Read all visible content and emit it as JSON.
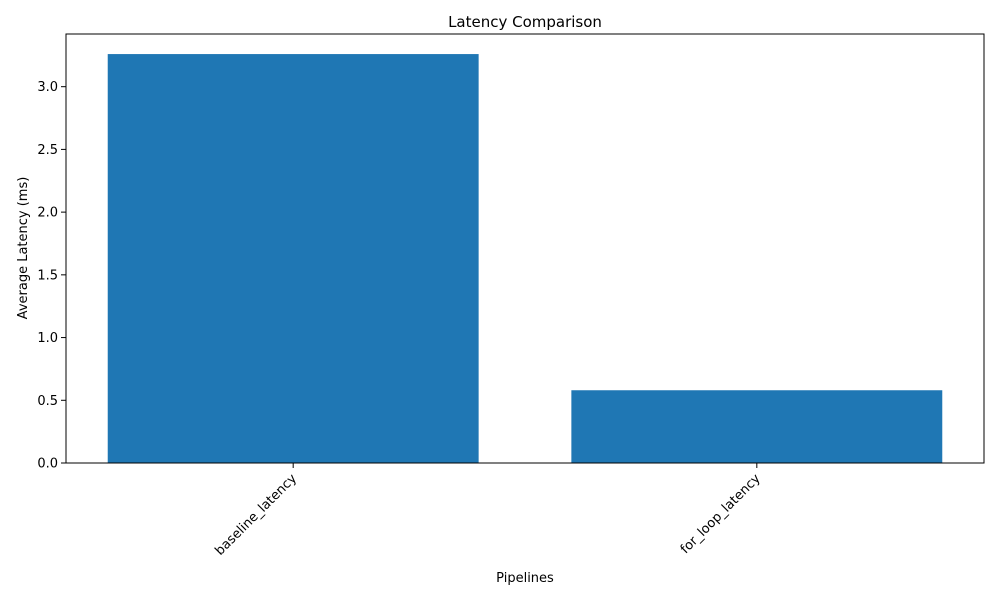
{
  "chart_data": {
    "type": "bar",
    "title": "Latency Comparison",
    "xlabel": "Pipelines",
    "ylabel": "Average Latency (ms)",
    "categories": [
      "baseline_latency",
      "for_loop_latency"
    ],
    "values": [
      3.26,
      0.58
    ],
    "ylim": [
      0,
      3.42
    ],
    "yticks": [
      0.0,
      0.5,
      1.0,
      1.5,
      2.0,
      2.5,
      3.0
    ],
    "ytick_labels": [
      "0.0",
      "0.5",
      "1.0",
      "1.5",
      "2.0",
      "2.5",
      "3.0"
    ],
    "bar_color": "#1f77b4",
    "grid": false,
    "legend": false
  }
}
